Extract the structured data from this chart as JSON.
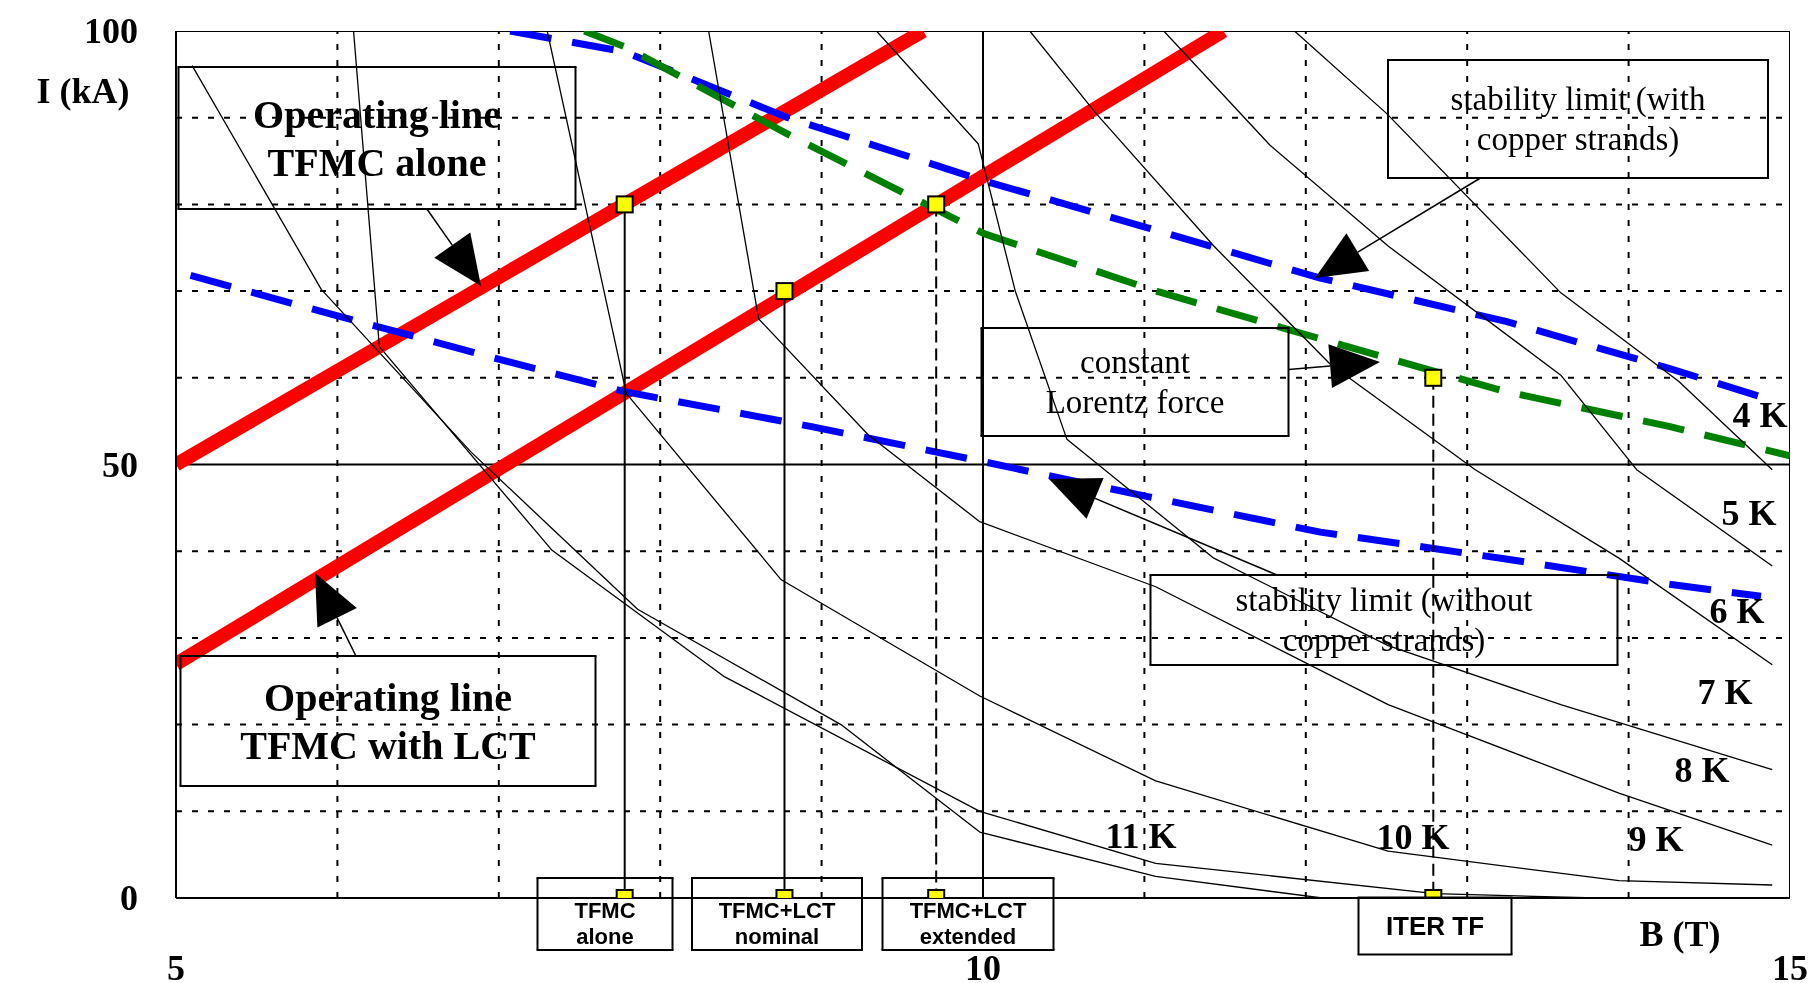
{
  "chart_data": {
    "type": "line",
    "xlabel": "B (T)",
    "ylabel": "I (kA)",
    "xlim": [
      5,
      15
    ],
    "ylim": [
      0,
      100
    ],
    "xticks": [
      5,
      {
        "value": 6,
        "label": null
      },
      {
        "value": 7,
        "label": null
      },
      {
        "value": 8,
        "label": null
      },
      {
        "value": 9,
        "label": null
      },
      10,
      {
        "value": 11,
        "label": null
      },
      {
        "value": 12,
        "label": null
      },
      {
        "value": 13,
        "label": null
      },
      {
        "value": 14,
        "label": null
      },
      15
    ],
    "yticks": [
      0,
      {
        "value": 10,
        "label": null
      },
      {
        "value": 20,
        "label": null
      },
      {
        "value": 30,
        "label": null
      },
      {
        "value": 40,
        "label": null
      },
      50,
      {
        "value": 60,
        "label": null
      },
      {
        "value": 70,
        "label": null
      },
      {
        "value": 80,
        "label": null
      },
      {
        "value": 90,
        "label": null
      },
      100
    ],
    "grid": true,
    "marker": "none",
    "line_style": "solid",
    "series": [
      {
        "color": "#ff0000",
        "x": [
          5,
          9.63
        ],
        "values": [
          50,
          100
        ]
      },
      {
        "color": "#ff0000",
        "x": [
          5,
          11.49
        ],
        "values": [
          27,
          100
        ]
      },
      {
        "color": "#0000ff",
        "line_style": "dashed",
        "x": [
          7.07,
          7.78,
          8.79,
          10.01,
          11.02,
          12.09,
          13.24,
          14.25,
          14.82
        ],
        "values": [
          100,
          97.6,
          90,
          82.7,
          77.3,
          71.5,
          66.5,
          61.1,
          57.8
        ]
      },
      {
        "color": "#0000ff",
        "line_style": "dashed",
        "x": [
          5.09,
          5.99,
          7.07,
          7.78,
          8.93,
          10.01,
          11.02,
          12.09,
          13.24,
          14.25,
          14.82
        ],
        "values": [
          71.8,
          67.2,
          61.8,
          58.4,
          54.4,
          50.3,
          46.3,
          42.2,
          39.1,
          36.2,
          34.8
        ]
      },
      {
        "color": "#008000",
        "line_style": "dashed",
        "x": [
          7.53,
          7.78,
          8.79,
          10.01,
          11.09,
          12.09,
          13.24,
          14.25,
          15
        ],
        "values": [
          100,
          98.2,
          88.1,
          76.6,
          69.9,
          64.5,
          58.4,
          54.4,
          51
        ]
      },
      {
        "color": "#000000",
        "x": [
          11.93,
          12.5,
          13.58,
          14.31,
          14.89
        ],
        "values": [
          100,
          90.5,
          69.8,
          59.6,
          49.4
        ]
      },
      {
        "color": "#000000",
        "x": [
          11.12,
          11.78,
          12.51,
          13.58,
          14.05,
          14.89
        ],
        "values": [
          100,
          86.8,
          75.2,
          60.3,
          49.4,
          38.3
        ]
      },
      {
        "color": "#000000",
        "x": [
          10.29,
          10.7,
          11.43,
          12.15,
          13.05,
          13.94,
          14.89
        ],
        "values": [
          100,
          90.5,
          75.2,
          61.6,
          49.4,
          39.2,
          26.9
        ]
      },
      {
        "color": "#000000",
        "x": [
          9.34,
          9.97,
          10.2,
          10.52,
          11.43,
          12.51,
          13.58,
          14.89
        ],
        "values": [
          100,
          87,
          70,
          52.9,
          39.2,
          29.1,
          22.3,
          14.8
        ]
      },
      {
        "color": "#000000",
        "x": [
          8.3,
          8.61,
          9.29,
          9.98,
          11.07,
          12.51,
          13.94,
          14.89
        ],
        "values": [
          100,
          66.8,
          53.4,
          43.4,
          35.9,
          22.3,
          12.1,
          6.1
        ]
      },
      {
        "color": "#000000",
        "x": [
          7.3,
          7.79,
          8.75,
          9.98,
          11.07,
          12.51,
          13.94,
          14.89
        ],
        "values": [
          100,
          58.2,
          36.7,
          23.3,
          13.5,
          5.4,
          2,
          1.5
        ]
      },
      {
        "color": "#000000",
        "x": [
          6.1,
          6.26,
          7.33,
          8.4,
          9.98,
          11.07,
          12.8,
          13.8
        ],
        "values": [
          100,
          63.6,
          40.1,
          25.5,
          10,
          4,
          0.5,
          0
        ]
      },
      {
        "color": "#000000",
        "x": [
          5.1,
          5.9,
          6.83,
          7.86,
          9.12,
          9.98,
          11.07,
          12.1
        ],
        "values": [
          96,
          70.2,
          51.4,
          33.3,
          20,
          7.6,
          2.5,
          0
        ]
      },
      {
        "color": "#000000",
        "x": [
          7.78,
          7.78
        ],
        "values": [
          80,
          0
        ]
      },
      {
        "color": "#000000",
        "x": [
          8.77,
          8.77
        ],
        "values": [
          70,
          0
        ]
      },
      {
        "color": "#000000",
        "line_style": "dashed",
        "x": [
          9.71,
          9.71
        ],
        "values": [
          80,
          0
        ]
      },
      {
        "color": "#000000",
        "line_style": "dashed",
        "x": [
          12.79,
          12.79
        ],
        "values": [
          60,
          0
        ]
      },
      {
        "type": "scatter",
        "marker": "square",
        "color": "#ffff00",
        "x": [
          7.78,
          8.77,
          9.71,
          12.79,
          7.78,
          8.77,
          9.71,
          12.79
        ],
        "values": [
          80,
          70,
          80,
          60,
          0,
          0,
          0,
          0
        ]
      }
    ],
    "annotations": [
      "Operating line TFMC alone",
      "Operating line TFMC with LCT",
      "stability limit (with copper strands)",
      "constant Lorentz force",
      "stability limit (without copper strands)",
      "TFMC alone",
      "TFMC+LCT nominal",
      "TFMC+LCT extended",
      "ITER TF",
      "4 K",
      "5 K",
      "6 K",
      "7 K",
      "8 K",
      "9 K",
      "10 K",
      "11 K"
    ]
  }
}
